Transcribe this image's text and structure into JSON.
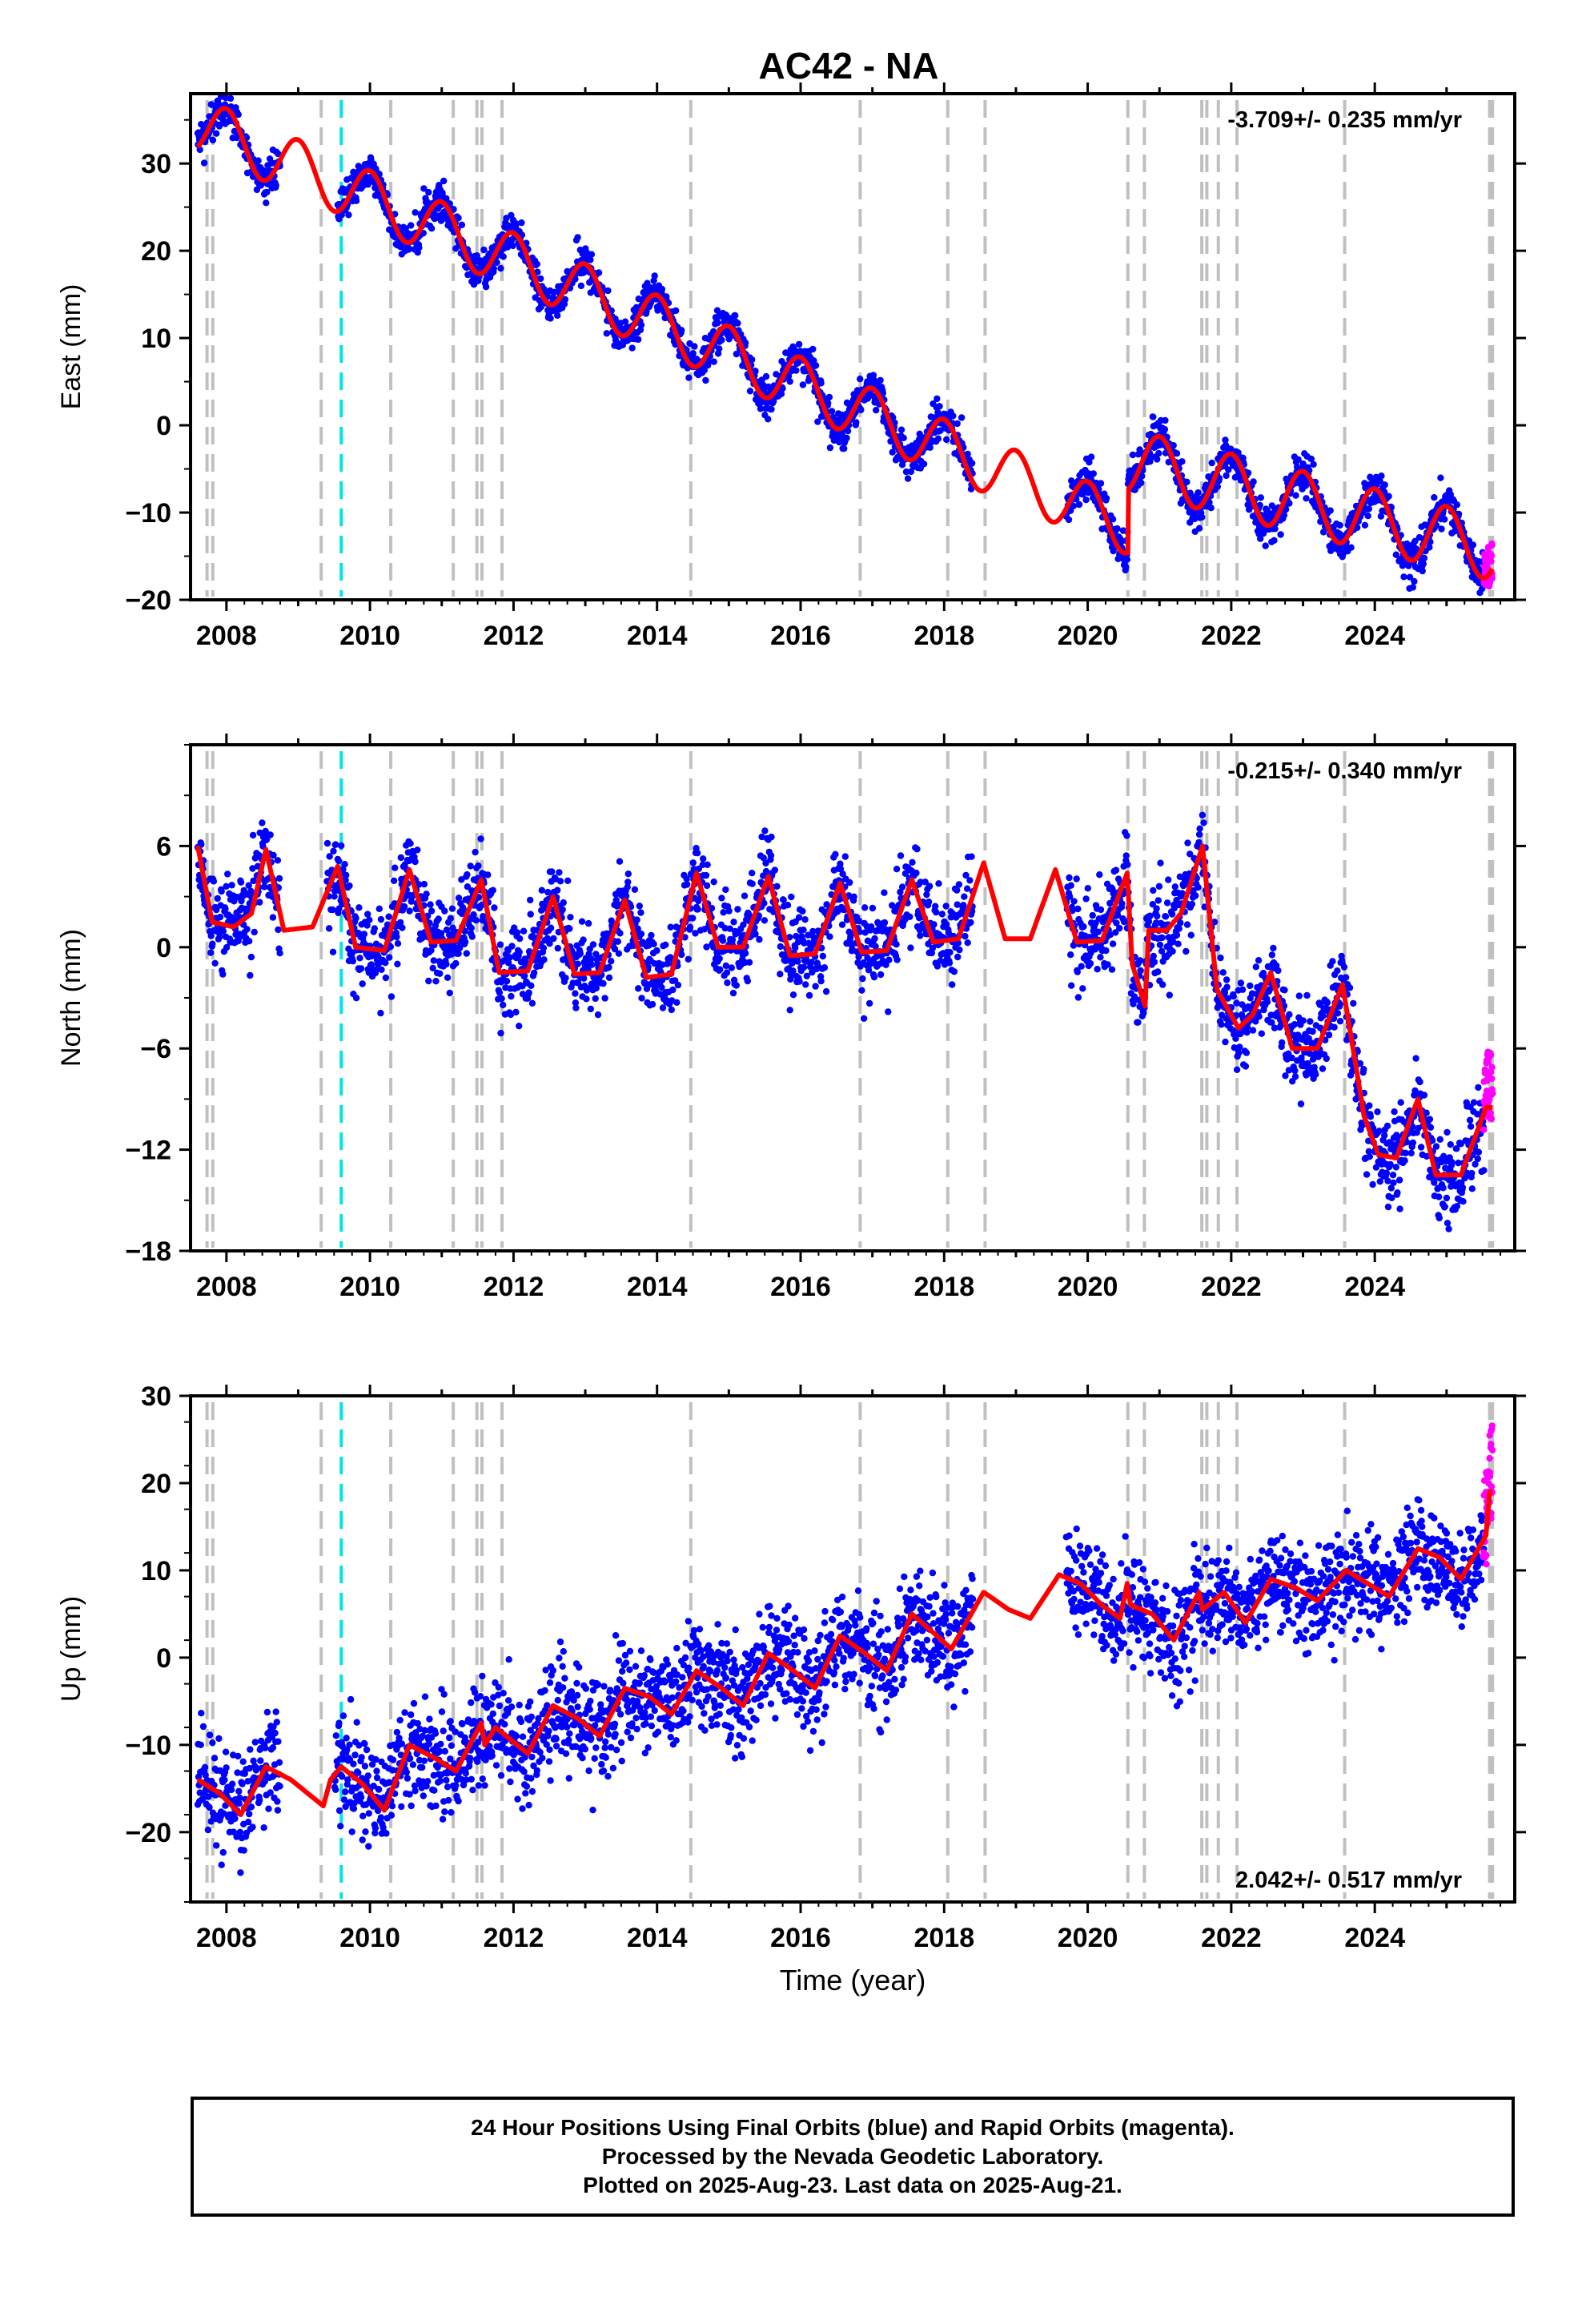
{
  "title": "AC42 - NA",
  "footer": {
    "line1": "24 Hour Positions Using Final Orbits (blue) and Rapid Orbits (magenta).",
    "line2": "Processed by the Nevada Geodetic Laboratory.",
    "line3": "Plotted on 2025-Aug-23. Last data on 2025-Aug-21."
  },
  "colors": {
    "final_orbits": "#0000ff",
    "rapid_orbits": "#ff00ff",
    "model": "#ff0000",
    "event_line": "#c0c0c0",
    "special_event_line": "#00e5e5"
  },
  "chart_data": [
    {
      "type": "scatter",
      "component": "east",
      "ylabel": "East (mm)",
      "xlabel": "",
      "xlim": [
        2007.5,
        2025.95
      ],
      "ylim": [
        -20,
        38
      ],
      "yticks": [
        -20,
        -10,
        0,
        10,
        20,
        30
      ],
      "xticks": [
        2008,
        2010,
        2012,
        2014,
        2016,
        2018,
        2020,
        2022,
        2024
      ],
      "rate_label": "-3.709+/- 0.235 mm/yr",
      "rate_position": "top-right",
      "model": {
        "segments": [
          {
            "t0": 2007.6,
            "t1": 2020.55,
            "offset": 63.7,
            "rate": -3.709,
            "amp": 3.2,
            "phase": 0.75
          },
          {
            "t0": 2020.56,
            "t1": 2025.6,
            "offset": 61.0,
            "rate": -3.709,
            "amp": 3.6,
            "phase": 0.75
          }
        ]
      },
      "gaps": [
        [
          2008.75,
          2009.55
        ],
        [
          2018.4,
          2019.7
        ]
      ],
      "noise_sd": 1.1
    },
    {
      "type": "scatter",
      "component": "north",
      "ylabel": "North (mm)",
      "xlabel": "",
      "xlim": [
        2007.5,
        2025.95
      ],
      "ylim": [
        -18,
        12
      ],
      "yticks": [
        -18,
        -12,
        -6,
        0,
        6
      ],
      "xticks": [
        2008,
        2010,
        2012,
        2014,
        2016,
        2018,
        2020,
        2022,
        2024
      ],
      "rate_label": "-0.215+/- 0.340 mm/yr",
      "rate_position": "top-right",
      "model_points": [
        [
          2007.6,
          6
        ],
        [
          2007.8,
          1.5
        ],
        [
          2008.1,
          1.2
        ],
        [
          2008.35,
          2.0
        ],
        [
          2008.55,
          5.8
        ],
        [
          2008.8,
          1.0
        ],
        [
          2009.2,
          1.2
        ],
        [
          2009.55,
          4.8
        ],
        [
          2009.8,
          0
        ],
        [
          2010.2,
          -0.2
        ],
        [
          2010.55,
          4.6
        ],
        [
          2010.85,
          0.3
        ],
        [
          2011.2,
          0.4
        ],
        [
          2011.55,
          4.0
        ],
        [
          2011.8,
          -1.5
        ],
        [
          2012.2,
          -1.4
        ],
        [
          2012.55,
          3.0
        ],
        [
          2012.85,
          -1.6
        ],
        [
          2013.2,
          -1.5
        ],
        [
          2013.55,
          2.8
        ],
        [
          2013.85,
          -1.8
        ],
        [
          2014.2,
          -1.6
        ],
        [
          2014.55,
          4.4
        ],
        [
          2014.85,
          0.0
        ],
        [
          2015.2,
          0.0
        ],
        [
          2015.55,
          4.2
        ],
        [
          2015.85,
          -0.5
        ],
        [
          2016.2,
          -0.4
        ],
        [
          2016.55,
          3.8
        ],
        [
          2016.85,
          -0.3
        ],
        [
          2017.2,
          -0.2
        ],
        [
          2017.55,
          4.0
        ],
        [
          2017.85,
          0.3
        ],
        [
          2018.2,
          0.5
        ],
        [
          2018.55,
          5.0
        ],
        [
          2018.85,
          0.5
        ],
        [
          2019.2,
          0.5
        ],
        [
          2019.55,
          4.6
        ],
        [
          2019.85,
          0.3
        ],
        [
          2020.2,
          0.4
        ],
        [
          2020.55,
          4.4
        ],
        [
          2020.62,
          -1.0
        ],
        [
          2020.8,
          -3.5
        ],
        [
          2020.85,
          1.0
        ],
        [
          2021.1,
          1.0
        ],
        [
          2021.3,
          2.0
        ],
        [
          2021.6,
          6.0
        ],
        [
          2021.8,
          -2.5
        ],
        [
          2022.1,
          -4.8
        ],
        [
          2022.3,
          -4.0
        ],
        [
          2022.55,
          -1.5
        ],
        [
          2022.85,
          -6.0
        ],
        [
          2023.2,
          -6.0
        ],
        [
          2023.55,
          -2.2
        ],
        [
          2023.85,
          -10.0
        ],
        [
          2024.05,
          -12.3
        ],
        [
          2024.3,
          -12.5
        ],
        [
          2024.6,
          -9.0
        ],
        [
          2024.85,
          -13.5
        ],
        [
          2025.2,
          -13.5
        ],
        [
          2025.55,
          -9.5
        ]
      ],
      "noise_sd": 1.3
    },
    {
      "type": "scatter",
      "component": "up",
      "ylabel": "Up (mm)",
      "xlabel": "Time (year)",
      "xlim": [
        2007.5,
        2025.95
      ],
      "ylim": [
        -28,
        30
      ],
      "yticks": [
        -20,
        -10,
        0,
        10,
        20,
        30
      ],
      "xticks": [
        2008,
        2010,
        2012,
        2014,
        2016,
        2018,
        2020,
        2022,
        2024
      ],
      "rate_label": "2.042+/- 0.517 mm/yr",
      "rate_position": "bottom-right",
      "model_points": [
        [
          2007.6,
          -14
        ],
        [
          2007.9,
          -15.5
        ],
        [
          2008.2,
          -18
        ],
        [
          2008.55,
          -12.5
        ],
        [
          2008.9,
          -14
        ],
        [
          2009.2,
          -16
        ],
        [
          2009.35,
          -17
        ],
        [
          2009.45,
          -14
        ],
        [
          2009.6,
          -12.5
        ],
        [
          2009.9,
          -14.5
        ],
        [
          2010.2,
          -17.5
        ],
        [
          2010.55,
          -10.0
        ],
        [
          2010.9,
          -11.5
        ],
        [
          2011.2,
          -13
        ],
        [
          2011.55,
          -7.5
        ],
        [
          2011.6,
          -10
        ],
        [
          2011.75,
          -8
        ],
        [
          2011.9,
          -9
        ],
        [
          2012.2,
          -11
        ],
        [
          2012.55,
          -5.5
        ],
        [
          2012.9,
          -7
        ],
        [
          2013.2,
          -9
        ],
        [
          2013.55,
          -3.5
        ],
        [
          2013.9,
          -4.5
        ],
        [
          2014.2,
          -6.5
        ],
        [
          2014.55,
          -1.5
        ],
        [
          2014.9,
          -3.5
        ],
        [
          2015.2,
          -5.5
        ],
        [
          2015.55,
          0.5
        ],
        [
          2015.9,
          -1.5
        ],
        [
          2016.2,
          -3.5
        ],
        [
          2016.55,
          2.5
        ],
        [
          2016.9,
          0.5
        ],
        [
          2017.2,
          -1.5
        ],
        [
          2017.55,
          5.0
        ],
        [
          2017.9,
          2.5
        ],
        [
          2018.1,
          1.0
        ],
        [
          2018.55,
          7.5
        ],
        [
          2018.9,
          5.5
        ],
        [
          2019.2,
          4.5
        ],
        [
          2019.6,
          9.5
        ],
        [
          2019.9,
          8.5
        ],
        [
          2020.2,
          6.0
        ],
        [
          2020.45,
          4.5
        ],
        [
          2020.55,
          8.5
        ],
        [
          2020.6,
          6.0
        ],
        [
          2020.9,
          5.0
        ],
        [
          2021.2,
          2.0
        ],
        [
          2021.55,
          7.5
        ],
        [
          2021.6,
          5.5
        ],
        [
          2021.9,
          7.5
        ],
        [
          2022.2,
          4.0
        ],
        [
          2022.55,
          9.0
        ],
        [
          2022.9,
          8.0
        ],
        [
          2023.2,
          6.5
        ],
        [
          2023.6,
          10.0
        ],
        [
          2023.9,
          8.5
        ],
        [
          2024.2,
          7.0
        ],
        [
          2024.6,
          12.5
        ],
        [
          2024.9,
          11.5
        ],
        [
          2025.2,
          9.0
        ],
        [
          2025.55,
          14.0
        ],
        [
          2025.6,
          19.0
        ]
      ],
      "noise_sd": 2.9
    }
  ],
  "event_lines": [
    2007.73,
    2007.81,
    2009.32,
    2010.29,
    2011.16,
    2011.49,
    2011.56,
    2011.84,
    2014.47,
    2016.83,
    2018.05,
    2018.57,
    2020.56,
    2020.79,
    2021.59,
    2021.66,
    2021.82,
    2022.08,
    2023.58,
    2025.6,
    2025.64
  ],
  "special_event_lines": [
    2009.6
  ],
  "data_start": 2007.6,
  "final_orbits_end": 2025.52,
  "rapid_orbits_range": [
    2025.52,
    2025.64
  ]
}
